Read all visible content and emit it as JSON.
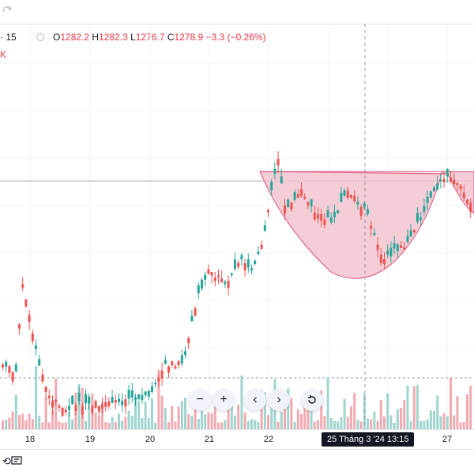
{
  "toolbar": {
    "redo_icon": "redo-icon"
  },
  "legend": {
    "symbol_interval": "· 15",
    "open_label": "O",
    "open_value": "1282.2",
    "high_label": "H",
    "high_value": "1282.3",
    "low_label": "L",
    "low_value": "1276.7",
    "close_label": "C",
    "close_value": "1278.9",
    "change": "−3.3 (−0.26%)",
    "indicator_label": "K"
  },
  "crosshair": {
    "label": "25 Tháng 3 '24   13:15"
  },
  "navigation": {
    "zoom_out": "−",
    "zoom_in": "+",
    "scroll_left": "‹",
    "scroll_right": "›",
    "reset_icon": "reset-icon"
  },
  "bottom": {
    "compare_icon": "compare-icon",
    "replay_icon": "replay-icon"
  },
  "colors": {
    "up": "#26a69a",
    "down": "#ef5350",
    "up_volume": "#9fd5ce",
    "down_volume": "#f2aab1",
    "pattern_fill": "#f2c0cd",
    "pattern_stroke": "#e06a8a"
  },
  "chart_data": {
    "type": "candlestick",
    "x_ticks": [
      "18",
      "19",
      "20",
      "21",
      "22",
      "25 Tháng 3 '24",
      "27"
    ],
    "annotation": "cup pattern",
    "candles": []
  }
}
